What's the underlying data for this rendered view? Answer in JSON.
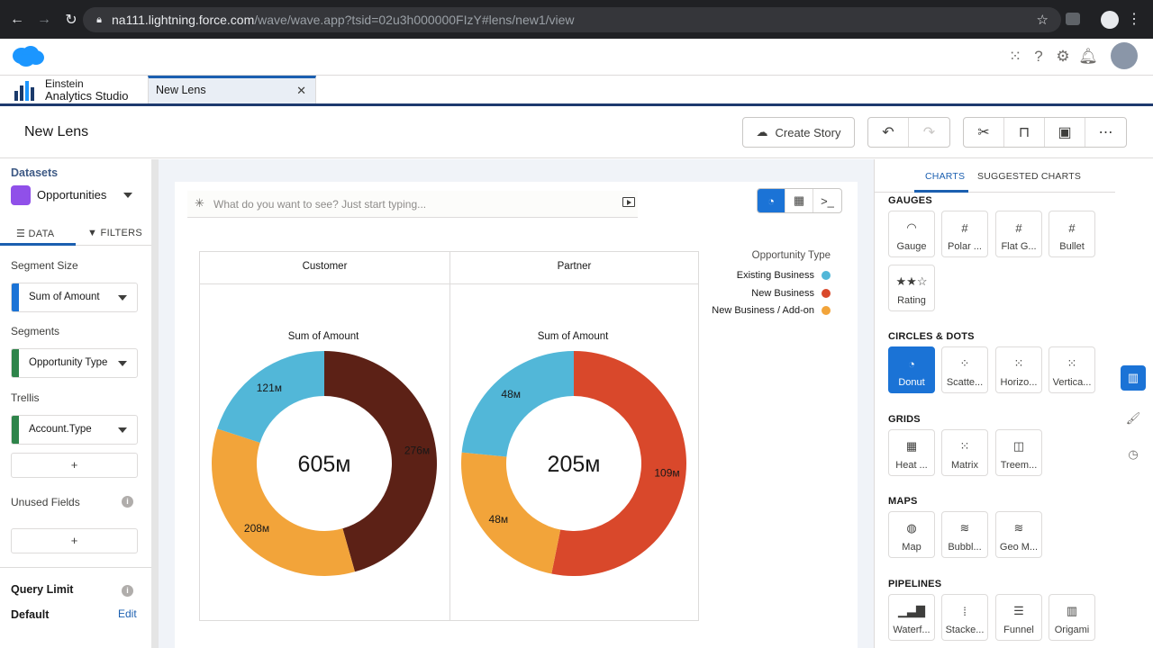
{
  "browser": {
    "url_host": "na111.lightning.force.com",
    "url_path": "/wave/wave.app?tsid=02u3h000000FIzY#lens/new1/view",
    "back_icon": "back-arrow-icon",
    "forward_icon": "forward-arrow-icon",
    "reload_icon": "reload-icon"
  },
  "app": {
    "name_line1": "Einstein",
    "name_line2": "Analytics Studio",
    "tab_label": "New Lens"
  },
  "page": {
    "title": "New Lens",
    "create_story_label": "Create Story"
  },
  "left_panel": {
    "datasets_label": "Datasets",
    "dataset_name": "Opportunities",
    "tab_data": "DATA",
    "tab_filters": "FILTERS",
    "segment_size_label": "Segment Size",
    "segment_size_value": "Sum of Amount",
    "segments_label": "Segments",
    "segments_value": "Opportunity Type",
    "trellis_label": "Trellis",
    "trellis_value": "Account.Type",
    "plus": "+",
    "unused_fields_label": "Unused Fields",
    "query_limit_label": "Query Limit",
    "query_limit_value": "Default",
    "edit_label": "Edit",
    "info": "i"
  },
  "canvas": {
    "search_placeholder": "What do you want to see? Just start typing..."
  },
  "chart_data": {
    "type": "donut",
    "legend_title": "Opportunity Type",
    "series_names": [
      "Existing Business",
      "New Business",
      "New Business / Add-on"
    ],
    "colors": {
      "customer": [
        "#52b7d8",
        "#5c2116",
        "#f2a43a"
      ],
      "partner": [
        "#52b7d8",
        "#d9482b",
        "#f2a43a"
      ]
    },
    "legend_colors": [
      "#52b7d8",
      "#d9482b",
      "#f2a43a"
    ],
    "panels": [
      {
        "trellis": "Customer",
        "measure_label": "Sum of Amount",
        "total_label": "605м",
        "segments": [
          {
            "name": "New Business",
            "value": 276,
            "label": "276м"
          },
          {
            "name": "New Business / Add-on",
            "value": 208,
            "label": "208м"
          },
          {
            "name": "Existing Business",
            "value": 121,
            "label": "121м"
          }
        ]
      },
      {
        "trellis": "Partner",
        "measure_label": "Sum of Amount",
        "total_label": "205м",
        "segments": [
          {
            "name": "New Business",
            "value": 109,
            "label": "109м"
          },
          {
            "name": "New Business / Add-on",
            "value": 48,
            "label": "48м"
          },
          {
            "name": "Existing Business",
            "value": 48,
            "label": "48м"
          }
        ]
      }
    ]
  },
  "right_panel": {
    "tab_charts": "CHARTS",
    "tab_suggested": "SUGGESTED CHARTS",
    "sections": [
      {
        "title": "GAUGES",
        "tiles": [
          {
            "label": "Gauge",
            "icon": "gauge-icon",
            "glyph": "◠"
          },
          {
            "label": "Polar ...",
            "icon": "polar-gauge-icon",
            "glyph": "#"
          },
          {
            "label": "Flat G...",
            "icon": "flat-gauge-icon",
            "glyph": "#"
          },
          {
            "label": "Bullet",
            "icon": "bullet-icon",
            "glyph": "#"
          },
          {
            "label": "Rating",
            "icon": "rating-icon",
            "glyph": "★★☆"
          }
        ]
      },
      {
        "title": "CIRCLES & DOTS",
        "tiles": [
          {
            "label": "Donut",
            "icon": "donut-icon",
            "glyph": "◔"
          },
          {
            "label": "Scatte...",
            "icon": "scatter-icon",
            "glyph": "⁘"
          },
          {
            "label": "Horizo...",
            "icon": "horizontal-dot-icon",
            "glyph": "⁙"
          },
          {
            "label": "Vertica...",
            "icon": "vertical-dot-icon",
            "glyph": "⁙"
          }
        ]
      },
      {
        "title": "GRIDS",
        "tiles": [
          {
            "label": "Heat ...",
            "icon": "heatmap-icon",
            "glyph": "▦"
          },
          {
            "label": "Matrix",
            "icon": "matrix-icon",
            "glyph": "⁙"
          },
          {
            "label": "Treem...",
            "icon": "treemap-icon",
            "glyph": "◫"
          }
        ]
      },
      {
        "title": "MAPS",
        "tiles": [
          {
            "label": "Map",
            "icon": "map-icon",
            "glyph": "◍"
          },
          {
            "label": "Bubbl...",
            "icon": "bubble-map-icon",
            "glyph": "≋"
          },
          {
            "label": "Geo M...",
            "icon": "geo-map-icon",
            "glyph": "≋"
          }
        ]
      },
      {
        "title": "PIPELINES",
        "tiles": [
          {
            "label": "Waterf...",
            "icon": "waterfall-icon",
            "glyph": "▁▃▇"
          },
          {
            "label": "Stacke...",
            "icon": "stacked-waterfall-icon",
            "glyph": "⁞"
          },
          {
            "label": "Funnel",
            "icon": "funnel-icon",
            "glyph": "☰"
          },
          {
            "label": "Origami",
            "icon": "origami-icon",
            "glyph": "▥"
          }
        ]
      }
    ]
  }
}
